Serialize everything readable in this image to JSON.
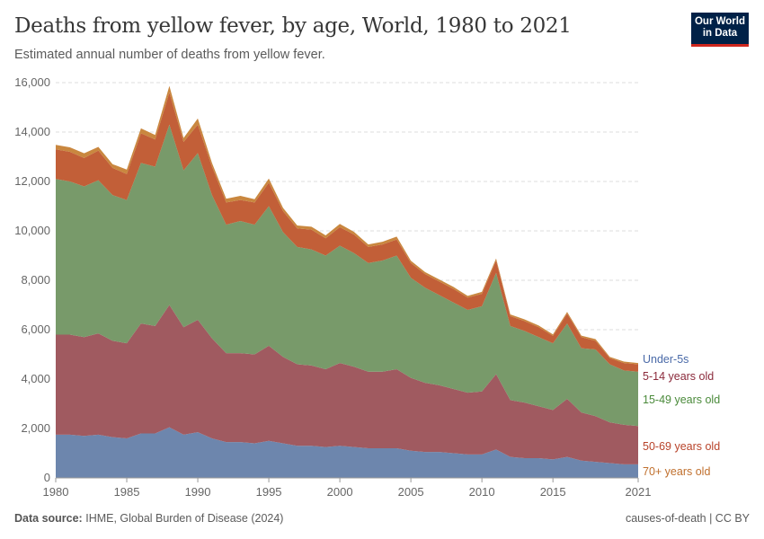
{
  "header": {
    "title": "Deaths from yellow fever, by age, World, 1980 to 2021",
    "subtitle": "Estimated annual number of deaths from yellow fever.",
    "logo": "Our World in Data"
  },
  "footer": {
    "source_label": "Data source:",
    "source": "IHME, Global Burden of Disease (2024)",
    "license": "causes-of-death | CC BY"
  },
  "chart_data": {
    "type": "area",
    "stacked": true,
    "title": "Deaths from yellow fever, by age, World, 1980 to 2021",
    "xlim": [
      1980,
      2021
    ],
    "ylim": [
      0,
      16000
    ],
    "grid": "horizontal dashed",
    "legend": "right (inline labels)",
    "x_ticks": [
      "1980",
      "1985",
      "1990",
      "1995",
      "2000",
      "2005",
      "2010",
      "2015",
      "2021"
    ],
    "y_ticks": [
      "0",
      "2,000",
      "4,000",
      "6,000",
      "8,000",
      "10,000",
      "12,000",
      "14,000",
      "16,000"
    ],
    "x": [
      1980,
      1981,
      1982,
      1983,
      1984,
      1985,
      1986,
      1987,
      1988,
      1989,
      1990,
      1991,
      1992,
      1993,
      1994,
      1995,
      1996,
      1997,
      1998,
      1999,
      2000,
      2001,
      2002,
      2003,
      2004,
      2005,
      2006,
      2007,
      2008,
      2009,
      2010,
      2011,
      2012,
      2013,
      2014,
      2015,
      2016,
      2017,
      2018,
      2019,
      2020,
      2021
    ],
    "series": [
      {
        "name": "Under-5s",
        "color": "#6d86ad",
        "label_color": "#4a6aa8",
        "values": [
          1750,
          1750,
          1700,
          1750,
          1650,
          1600,
          1800,
          1800,
          2050,
          1750,
          1850,
          1600,
          1450,
          1450,
          1400,
          1500,
          1400,
          1300,
          1300,
          1250,
          1300,
          1250,
          1200,
          1200,
          1200,
          1100,
          1050,
          1050,
          1000,
          950,
          950,
          1150,
          850,
          800,
          800,
          750,
          850,
          700,
          650,
          600,
          550,
          550
        ]
      },
      {
        "name": "5-14 years old",
        "color": "#a05a60",
        "label_color": "#8b2a3b",
        "values": [
          4050,
          4050,
          4000,
          4100,
          3900,
          3850,
          4450,
          4350,
          4950,
          4350,
          4550,
          4050,
          3600,
          3600,
          3600,
          3850,
          3500,
          3300,
          3250,
          3150,
          3350,
          3250,
          3100,
          3100,
          3200,
          2950,
          2800,
          2700,
          2600,
          2500,
          2550,
          3050,
          2300,
          2250,
          2100,
          2000,
          2350,
          1950,
          1850,
          1650,
          1600,
          1550
        ]
      },
      {
        "name": "15-49 years old",
        "color": "#789a6a",
        "label_color": "#4a8a3a",
        "values": [
          6300,
          6200,
          6100,
          6200,
          5900,
          5800,
          6500,
          6450,
          7300,
          6350,
          6750,
          5800,
          5200,
          5350,
          5250,
          5650,
          5050,
          4750,
          4700,
          4600,
          4750,
          4600,
          4400,
          4500,
          4600,
          4050,
          3850,
          3650,
          3500,
          3350,
          3450,
          4100,
          3000,
          2900,
          2800,
          2700,
          3050,
          2600,
          2700,
          2350,
          2200,
          2200
        ]
      },
      {
        "name": "50-69 years old",
        "color": "#c25f38",
        "label_color": "#b8432a",
        "values": [
          1200,
          1200,
          1150,
          1200,
          1100,
          1050,
          1200,
          1100,
          1300,
          1150,
          1150,
          1150,
          900,
          850,
          900,
          950,
          850,
          750,
          800,
          700,
          750,
          750,
          650,
          650,
          650,
          600,
          550,
          550,
          550,
          500,
          500,
          500,
          400,
          400,
          400,
          300,
          400,
          450,
          350,
          250,
          300,
          300
        ]
      },
      {
        "name": "70+ years old",
        "color": "#c9873f",
        "label_color": "#c0702e",
        "values": [
          180,
          180,
          190,
          150,
          150,
          180,
          200,
          180,
          270,
          160,
          250,
          150,
          150,
          170,
          130,
          170,
          130,
          120,
          120,
          120,
          130,
          110,
          100,
          110,
          120,
          90,
          80,
          80,
          80,
          70,
          80,
          80,
          70,
          70,
          70,
          60,
          70,
          60,
          70,
          50,
          60,
          50
        ]
      }
    ]
  }
}
